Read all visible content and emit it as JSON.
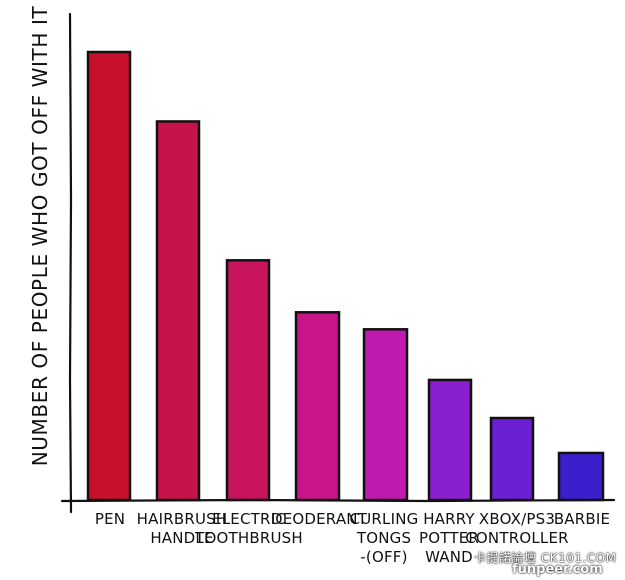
{
  "chart_data": {
    "type": "bar",
    "title": "",
    "xlabel": "",
    "ylabel": "NUMBER OF PEOPLE WHO GOT OFF WITH IT",
    "ylim": [
      0,
      100
    ],
    "grid": false,
    "legend": "none",
    "categories": [
      [
        "PEN"
      ],
      [
        "HAIRBRUSH",
        "HANDLE"
      ],
      [
        "ELECTRIC",
        "TOOTHBRUSH"
      ],
      [
        "DEODERANT"
      ],
      [
        "CURLING",
        "TONGS",
        "-(OFF)"
      ],
      [
        "HARRY",
        "POTTER",
        "WAND"
      ],
      [
        "XBOX/PS3",
        "CONTROLLER"
      ],
      [
        "BARBIE"
      ]
    ],
    "values": [
      100,
      84.5,
      53.5,
      41.9,
      38.1,
      26.8,
      18.3,
      10.5
    ],
    "colors": [
      "#c8102e",
      "#c8124a",
      "#c8145c",
      "#c8168a",
      "#c019b0",
      "#8a1fd0",
      "#6a1fd2",
      "#3a1fcc"
    ]
  },
  "watermark": {
    "line1": "卡提諾論壇 CK101.COM",
    "line2": "funpeer.com"
  }
}
